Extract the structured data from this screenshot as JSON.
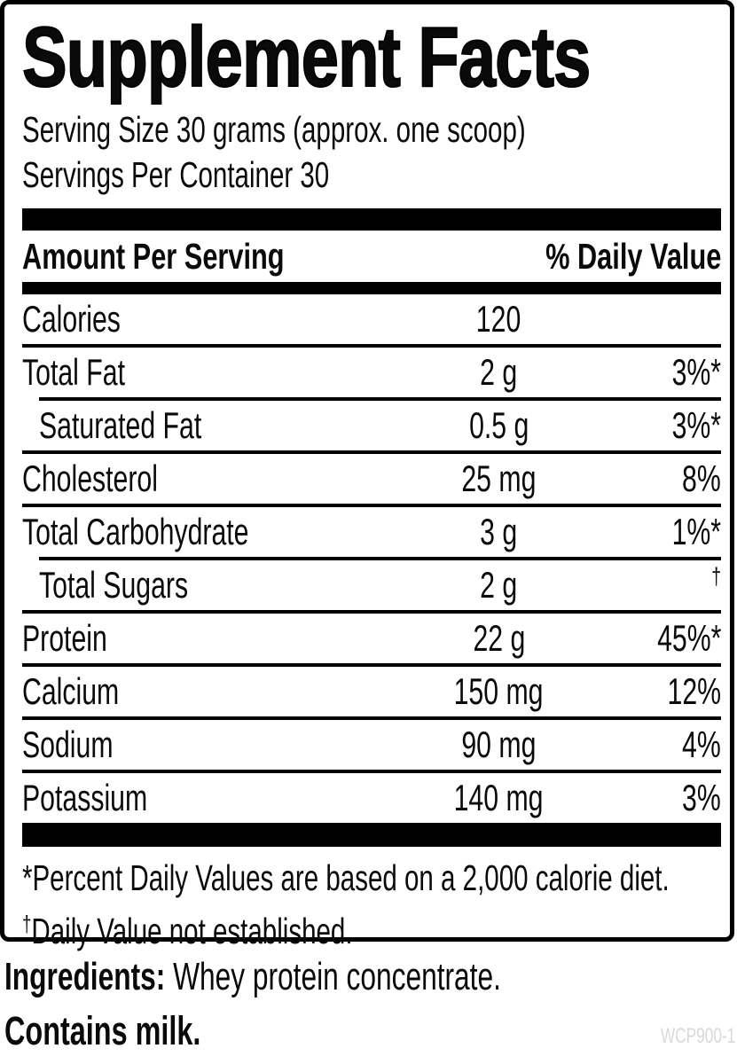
{
  "panel": {
    "title": "Supplement Facts",
    "serving_size": "Serving Size 30 grams (approx. one scoop)",
    "servings_per_container": "Servings Per Container 30",
    "header": {
      "left": "Amount Per Serving",
      "right": "% Daily Value"
    },
    "rows": [
      {
        "name": "Calories",
        "amount": "120",
        "dv": "",
        "indent": false
      },
      {
        "name": "Total Fat",
        "amount": "2 g",
        "dv": "3%*",
        "indent": false
      },
      {
        "name": "Saturated Fat",
        "amount": "0.5 g",
        "dv": "3%*",
        "indent": true
      },
      {
        "name": "Cholesterol",
        "amount": "25 mg",
        "dv": "8%",
        "indent": false
      },
      {
        "name": "Total Carbohydrate",
        "amount": "3 g",
        "dv": "1%*",
        "indent": false
      },
      {
        "name": "Total Sugars",
        "amount": "2 g",
        "dv": "†",
        "indent": true,
        "dv_style": "dagger"
      },
      {
        "name": "Protein",
        "amount": "22 g",
        "dv": "45%*",
        "indent": false
      },
      {
        "name": "Calcium",
        "amount": "150 mg",
        "dv": "12%",
        "indent": false
      },
      {
        "name": "Sodium",
        "amount": "90 mg",
        "dv": "4%",
        "indent": false
      },
      {
        "name": "Potassium",
        "amount": "140 mg",
        "dv": "3%",
        "indent": false
      }
    ],
    "footnotes": [
      {
        "prefix": "*",
        "text": "Percent Daily Values are based on a 2,000 calorie diet."
      },
      {
        "prefix": "†",
        "text": "Daily Value not established."
      }
    ]
  },
  "below": {
    "ingredients_label": "Ingredients:",
    "ingredients_text": " Whey protein concentrate.",
    "contains": "Contains milk.",
    "watermark": "WCP900-1"
  },
  "colors": {
    "ink": "#0a0a0a",
    "watermark": "#d7d9da"
  }
}
